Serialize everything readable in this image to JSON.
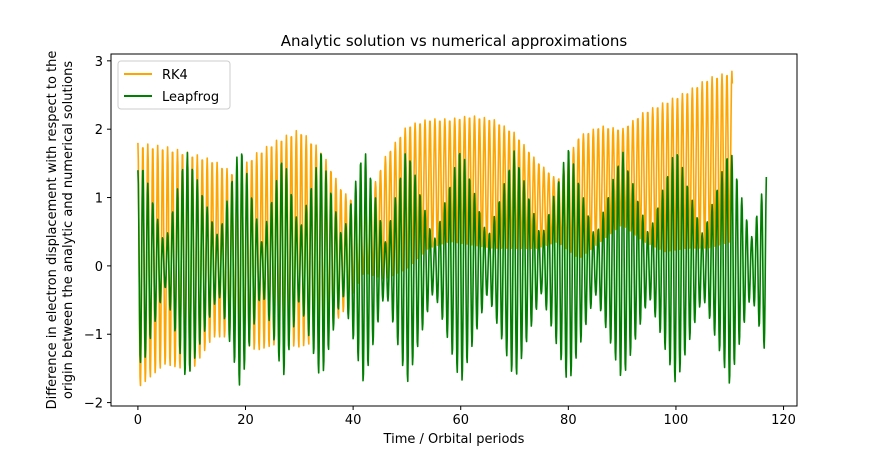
{
  "chart_data": {
    "type": "line",
    "title": "Analytic solution vs numerical approximations",
    "xlabel": "Time / Orbital periods",
    "ylabel_lines": [
      "Difference in electron displacement with respect to the",
      "origin between the analytic and numerical solutions"
    ],
    "xlim": [
      -5,
      122.5
    ],
    "ylim": [
      -2.05,
      3.1
    ],
    "xticks": [
      0,
      20,
      40,
      60,
      80,
      100,
      120
    ],
    "yticks": [
      -2,
      -1,
      0,
      1,
      2,
      3
    ],
    "grid": false,
    "legend_position": "top-left",
    "series": [
      {
        "name": "RK4",
        "color": "#ffa500",
        "x_end": 110.5,
        "oscillation_period": 0.92,
        "envelope_knots": {
          "x": [
            0,
            5,
            10,
            14,
            18,
            22,
            26,
            30,
            34,
            38,
            42,
            46,
            50,
            54,
            58,
            62,
            66,
            70,
            74,
            78,
            82,
            86,
            90,
            94,
            98,
            102,
            106,
            110.5
          ],
          "center": [
            0.0,
            0.15,
            0.05,
            0.25,
            0.15,
            0.2,
            0.35,
            0.4,
            0.3,
            0.2,
            0.35,
            0.7,
            1.0,
            1.2,
            1.25,
            1.25,
            1.2,
            1.1,
            0.9,
            0.8,
            1.0,
            1.2,
            1.3,
            1.3,
            1.3,
            1.4,
            1.5,
            1.6
          ],
          "amp": [
            1.8,
            1.6,
            1.6,
            1.3,
            1.2,
            1.45,
            1.5,
            1.6,
            1.4,
            0.9,
            0.45,
            0.9,
            1.05,
            0.95,
            0.9,
            0.95,
            0.95,
            0.85,
            0.65,
            0.45,
            0.9,
            0.85,
            0.7,
            0.95,
            1.1,
            1.15,
            1.25,
            1.25
          ]
        }
      },
      {
        "name": "Leapfrog",
        "color": "#008000",
        "x_end": 116.8,
        "oscillation_period": 0.92,
        "envelope_knots": {
          "x": [
            0,
            1,
            5,
            9,
            15,
            19,
            23,
            27,
            30,
            34,
            38,
            42,
            46,
            50,
            55,
            60,
            65,
            70,
            75,
            80,
            85,
            90,
            95,
            100,
            105,
            110,
            114,
            116.8
          ],
          "center": [
            0.0,
            0.0,
            0.0,
            0.0,
            0.0,
            0.0,
            0.0,
            0.0,
            0.0,
            0.0,
            0.0,
            0.0,
            0.0,
            0.0,
            0.0,
            0.0,
            0.0,
            0.0,
            0.0,
            0.0,
            0.0,
            0.0,
            0.0,
            0.0,
            0.0,
            0.0,
            0.0,
            0.0
          ],
          "amp": [
            1.4,
            1.45,
            0.3,
            1.7,
            0.4,
            1.8,
            0.35,
            1.65,
            0.5,
            1.7,
            0.4,
            1.75,
            0.35,
            1.75,
            0.35,
            1.75,
            0.4,
            1.7,
            0.4,
            1.75,
            0.4,
            1.7,
            0.45,
            1.75,
            0.45,
            1.75,
            0.4,
            1.35
          ]
        }
      }
    ]
  }
}
